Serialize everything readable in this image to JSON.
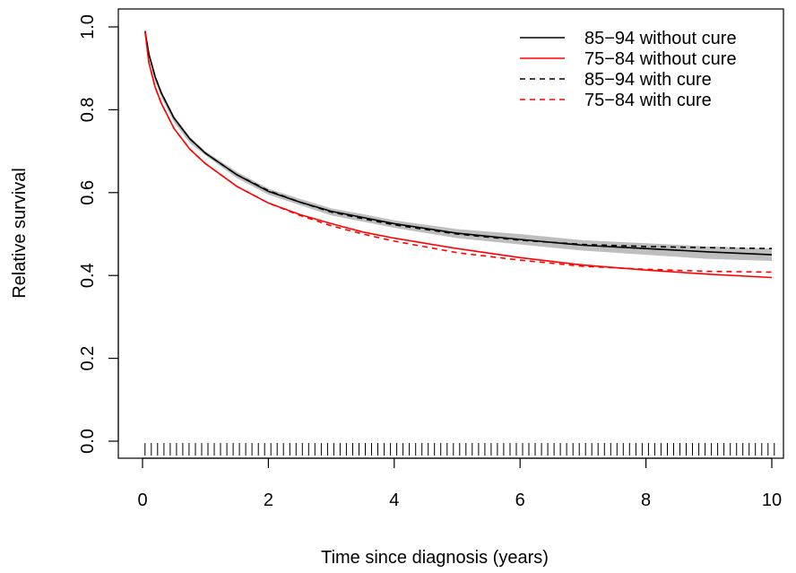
{
  "chart_data": {
    "type": "line",
    "title": "",
    "xlabel": "Time since diagnosis (years)",
    "ylabel": "Relative survival",
    "xlim": [
      0,
      10
    ],
    "ylim": [
      0,
      1
    ],
    "x_ticks": [
      0,
      2,
      4,
      6,
      8,
      10
    ],
    "y_ticks": [
      0.0,
      0.2,
      0.4,
      0.6,
      0.8,
      1.0
    ],
    "x_tick_labels": [
      "0",
      "2",
      "4",
      "6",
      "8",
      "10"
    ],
    "y_tick_labels": [
      "0.0",
      "0.2",
      "0.4",
      "0.6",
      "0.8",
      "1.0"
    ],
    "grid": false,
    "legend_position": "top-right",
    "rug": {
      "from": 0.04,
      "to": 10,
      "step": 0.1,
      "color": "#000000"
    },
    "band": {
      "color": "#bebebe",
      "x": [
        0.04,
        0.1,
        0.2,
        0.3,
        0.5,
        0.75,
        1,
        1.5,
        2,
        2.5,
        3,
        3.5,
        4,
        5,
        6,
        7,
        8,
        9,
        10
      ],
      "lower": [
        0.985,
        0.93,
        0.87,
        0.83,
        0.77,
        0.72,
        0.69,
        0.635,
        0.595,
        0.57,
        0.545,
        0.53,
        0.515,
        0.49,
        0.475,
        0.46,
        0.45,
        0.44,
        0.435
      ],
      "upper": [
        0.99,
        0.94,
        0.885,
        0.845,
        0.785,
        0.735,
        0.7,
        0.65,
        0.61,
        0.585,
        0.562,
        0.548,
        0.533,
        0.512,
        0.5,
        0.485,
        0.478,
        0.47,
        0.465
      ]
    },
    "series": [
      {
        "name": "85−94 without cure",
        "color": "#000000",
        "dash": "solid",
        "x": [
          0.04,
          0.1,
          0.2,
          0.3,
          0.5,
          0.75,
          1,
          1.5,
          2,
          2.5,
          3,
          3.5,
          4,
          5,
          6,
          7,
          8,
          9,
          10
        ],
        "y": [
          0.99,
          0.935,
          0.88,
          0.84,
          0.78,
          0.73,
          0.695,
          0.643,
          0.603,
          0.577,
          0.555,
          0.54,
          0.525,
          0.502,
          0.487,
          0.473,
          0.465,
          0.457,
          0.45
        ]
      },
      {
        "name": "75−84 without cure",
        "color": "#ff0000",
        "dash": "solid",
        "x": [
          0.04,
          0.1,
          0.2,
          0.3,
          0.5,
          0.75,
          1,
          1.5,
          2,
          2.5,
          3,
          3.5,
          4,
          5,
          6,
          7,
          8,
          9,
          10
        ],
        "y": [
          0.99,
          0.915,
          0.855,
          0.815,
          0.755,
          0.705,
          0.67,
          0.615,
          0.575,
          0.547,
          0.525,
          0.505,
          0.49,
          0.465,
          0.443,
          0.425,
          0.413,
          0.403,
          0.395
        ]
      },
      {
        "name": "85−94 with cure",
        "color": "#000000",
        "dash": "dashed",
        "x": [
          0.04,
          0.1,
          0.2,
          0.3,
          0.5,
          0.75,
          1,
          1.5,
          2,
          2.5,
          3,
          3.5,
          4,
          5,
          6,
          7,
          8,
          9,
          10
        ],
        "y": [
          0.99,
          0.935,
          0.88,
          0.84,
          0.78,
          0.73,
          0.695,
          0.643,
          0.605,
          0.577,
          0.553,
          0.537,
          0.522,
          0.5,
          0.485,
          0.475,
          0.47,
          0.467,
          0.465
        ]
      },
      {
        "name": "75−84 with cure",
        "color": "#ff0000",
        "dash": "dashed",
        "x": [
          0.04,
          0.1,
          0.2,
          0.3,
          0.5,
          0.75,
          1,
          1.5,
          2,
          2.5,
          3,
          3.5,
          4,
          5,
          6,
          7,
          8,
          9,
          10
        ],
        "y": [
          0.99,
          0.915,
          0.855,
          0.815,
          0.755,
          0.705,
          0.67,
          0.615,
          0.575,
          0.545,
          0.52,
          0.5,
          0.483,
          0.455,
          0.437,
          0.422,
          0.415,
          0.41,
          0.408
        ]
      }
    ]
  }
}
